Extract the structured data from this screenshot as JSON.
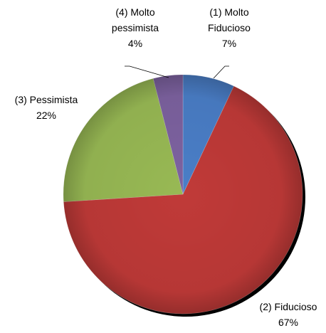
{
  "chart_data": {
    "type": "pie",
    "title": "",
    "slices": [
      {
        "label_lines": [
          "(1) Molto",
          "Fiducioso"
        ],
        "value": 7,
        "value_label": "7%",
        "color": "#4a7ec7"
      },
      {
        "label_lines": [
          "(2) Fiducioso"
        ],
        "value": 67,
        "value_label": "67%",
        "color": "#c03a38"
      },
      {
        "label_lines": [
          "(3) Pessimista"
        ],
        "value": 22,
        "value_label": "22%",
        "color": "#98b954"
      },
      {
        "label_lines": [
          "(4) Molto",
          "pessimista"
        ],
        "value": 4,
        "value_label": "4%",
        "color": "#7d62a0"
      }
    ],
    "start": "12 o'clock",
    "direction": "clockwise",
    "legend": "none",
    "style": "3d-shaded"
  }
}
